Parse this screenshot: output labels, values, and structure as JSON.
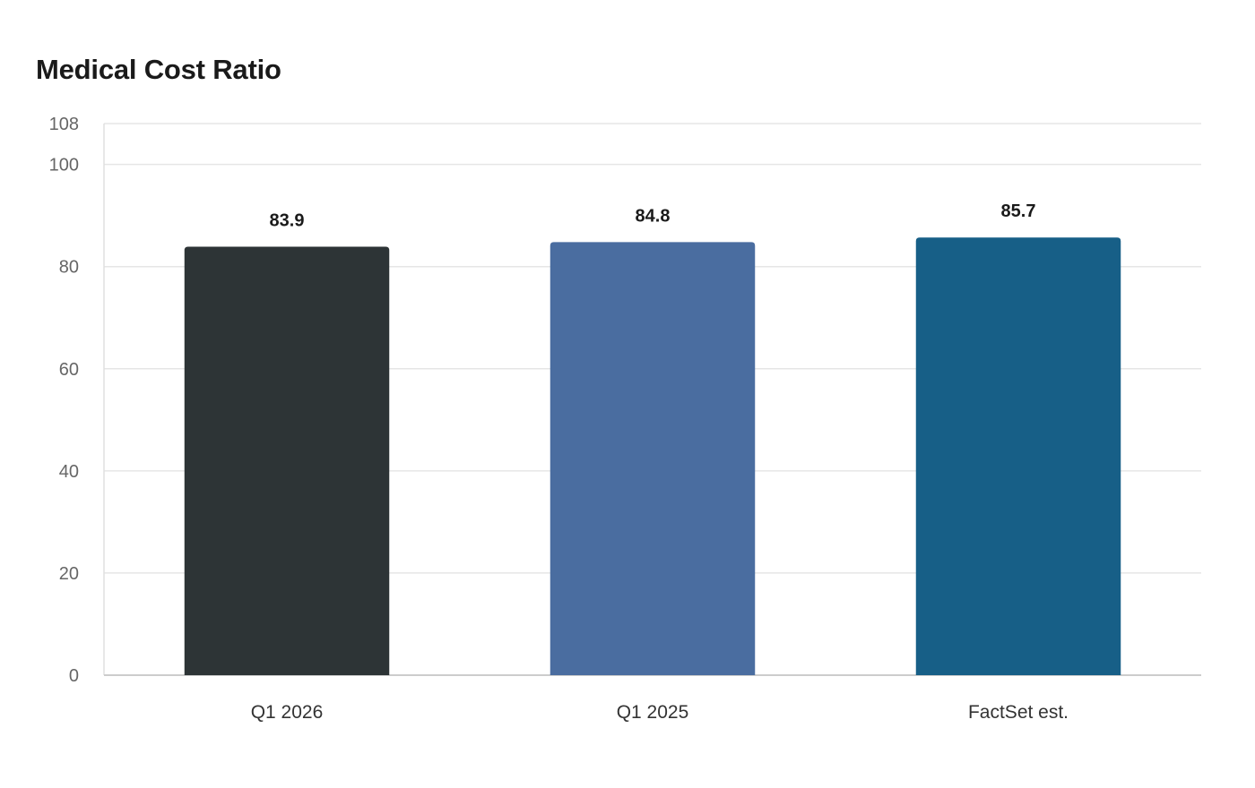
{
  "chart_data": {
    "type": "bar",
    "title": "Medical Cost Ratio",
    "categories": [
      "Q1 2026",
      "Q1 2025",
      "FactSet est."
    ],
    "values": [
      83.9,
      84.8,
      85.7
    ],
    "value_labels": [
      "83.9",
      "84.8",
      "85.7"
    ],
    "colors": [
      "#2d3436",
      "#4a6da0",
      "#175f87"
    ],
    "ylim": [
      0,
      108
    ],
    "yticks": [
      0,
      20,
      40,
      60,
      80,
      100,
      108
    ],
    "ytick_labels": [
      "0",
      "20",
      "40",
      "60",
      "80",
      "100",
      "108"
    ],
    "grid": true,
    "xlabel": "",
    "ylabel": ""
  }
}
